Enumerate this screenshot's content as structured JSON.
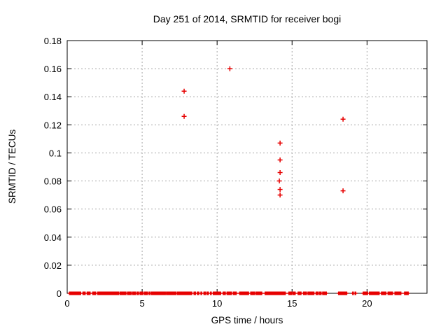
{
  "chart_data": {
    "type": "scatter",
    "title": "Day 251 of 2014, SRMTID for receiver bogi",
    "xlabel": "GPS time / hours",
    "ylabel": "SRMTID / TECUs",
    "xlim": [
      0,
      24
    ],
    "ylim": [
      0,
      0.18
    ],
    "xticks": {
      "values": [
        0,
        5,
        10,
        15,
        20
      ],
      "labels": [
        "0",
        "5",
        "10",
        "15",
        "20"
      ]
    },
    "yticks": {
      "values": [
        0,
        0.02,
        0.04,
        0.06,
        0.08,
        0.1,
        0.12,
        0.14,
        0.16,
        0.18
      ],
      "labels": [
        "0",
        "0.02",
        "0.04",
        "0.06",
        "0.08",
        "0.1",
        "0.12",
        "0.14",
        "0.16",
        "0.18"
      ]
    },
    "grid": true,
    "legend_position": "none",
    "marker": "plus",
    "colors": {
      "marker": "#e60000",
      "grid": "#a6a6a6",
      "border": "#000000",
      "text": "#000000",
      "background": "#ffffff"
    },
    "series": [
      {
        "name": "SRMTID",
        "outlier_points": [
          [
            7.8,
            0.144
          ],
          [
            7.8,
            0.126
          ],
          [
            10.85,
            0.16
          ],
          [
            14.2,
            0.107
          ],
          [
            14.2,
            0.095
          ],
          [
            14.2,
            0.086
          ],
          [
            14.15,
            0.08
          ],
          [
            14.2,
            0.074
          ],
          [
            14.2,
            0.07
          ],
          [
            18.4,
            0.124
          ],
          [
            18.4,
            0.073
          ]
        ],
        "zero_band_value": 0,
        "zero_band_segments": [
          [
            0.15,
            0.92
          ],
          [
            1.05,
            1.24
          ],
          [
            1.33,
            1.56
          ],
          [
            1.7,
            1.92
          ],
          [
            2.03,
            3.43
          ],
          [
            3.52,
            3.93
          ],
          [
            4.02,
            4.28
          ],
          [
            4.36,
            4.58
          ],
          [
            4.66,
            4.79
          ],
          [
            4.86,
            5.08
          ],
          [
            5.16,
            5.38
          ],
          [
            5.46,
            5.53
          ],
          [
            5.6,
            6.55
          ],
          [
            6.62,
            7.28
          ],
          [
            7.36,
            8.35
          ],
          [
            8.46,
            8.58
          ],
          [
            8.68,
            8.82
          ],
          [
            8.92,
            9.02
          ],
          [
            9.12,
            9.22
          ],
          [
            9.32,
            9.46
          ],
          [
            9.56,
            9.66
          ],
          [
            9.74,
            10.28
          ],
          [
            10.4,
            10.56
          ],
          [
            10.66,
            11.0
          ],
          [
            11.08,
            11.3
          ],
          [
            11.5,
            12.15
          ],
          [
            12.24,
            12.5
          ],
          [
            12.58,
            13.0
          ],
          [
            13.2,
            14.58
          ],
          [
            14.78,
            15.0
          ],
          [
            15.06,
            15.22
          ],
          [
            15.4,
            15.64
          ],
          [
            15.76,
            16.0
          ],
          [
            16.06,
            16.5
          ],
          [
            16.6,
            16.76
          ],
          [
            16.84,
            16.94
          ],
          [
            17.04,
            17.3
          ],
          [
            18.1,
            18.68
          ],
          [
            19.04,
            19.1
          ],
          [
            19.2,
            19.26
          ],
          [
            19.74,
            20.06
          ],
          [
            20.16,
            20.84
          ],
          [
            20.96,
            21.3
          ],
          [
            21.4,
            21.74
          ],
          [
            21.86,
            22.3
          ],
          [
            22.5,
            22.76
          ]
        ]
      }
    ]
  }
}
